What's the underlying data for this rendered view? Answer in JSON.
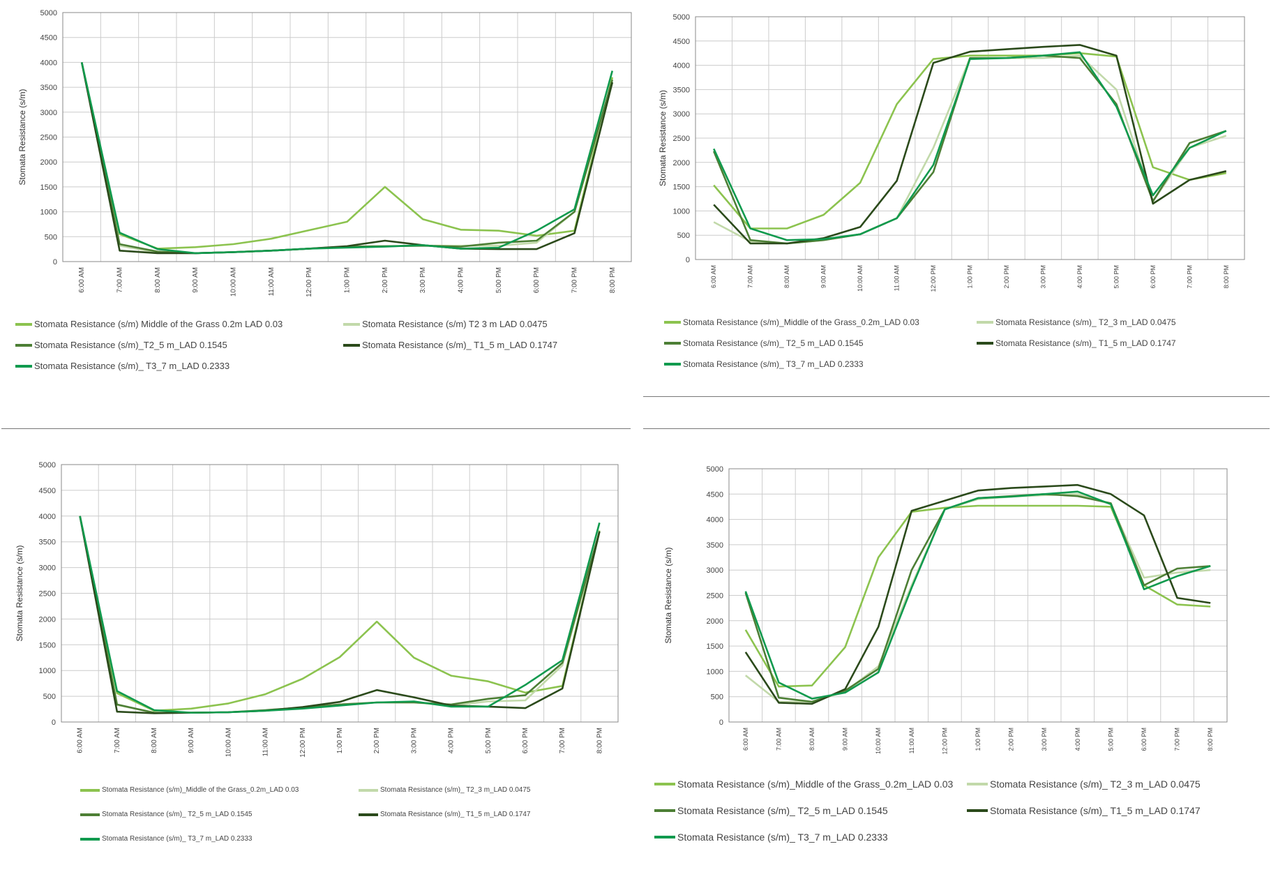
{
  "colors": {
    "grass": "#8cc34f",
    "t2_3": "#c2d9aa",
    "t2_5": "#4d7f35",
    "t1_5": "#2b4a1b",
    "t3_7": "#109a4e",
    "grid": "#cccccc",
    "axis": "#888888"
  },
  "chart_data": [
    {
      "type": "line",
      "ylabel": "Stomata Resistance  (s/m)",
      "ylim": [
        0,
        5000
      ],
      "yticks": [
        "0",
        "500",
        "1000",
        "1500",
        "2000",
        "2500",
        "3000",
        "3500",
        "4000",
        "4500",
        "5000"
      ],
      "categories": [
        "6:00 AM",
        "7:00 AM",
        "8:00 AM",
        "9:00 AM",
        "10:00 AM",
        "11:00 AM",
        "12:00 PM",
        "1:00 PM",
        "2:00 PM",
        "3:00 PM",
        "4:00 PM",
        "5:00 PM",
        "6:00 PM",
        "7:00 PM",
        "8:00 PM"
      ],
      "grid": true,
      "series": [
        {
          "name": "Stomata Resistance  (s/m)  Middle of the Grass  0.2m  LAD 0.03",
          "color": "grass",
          "values": [
            4000,
            550,
            260,
            290,
            350,
            460,
            630,
            800,
            1500,
            850,
            640,
            620,
            520,
            620,
            3700
          ]
        },
        {
          "name": "Stomata Resistance  (s/m)   T2  3 m   LAD 0.0475",
          "color": "t2_3",
          "values": [
            4000,
            320,
            180,
            170,
            190,
            220,
            260,
            300,
            310,
            320,
            320,
            320,
            380,
            1000,
            3600
          ]
        },
        {
          "name": "Stomata Resistance  (s/m)_T2_5 m_LAD 0.1545",
          "color": "t2_5",
          "values": [
            4000,
            350,
            200,
            170,
            190,
            220,
            260,
            300,
            310,
            320,
            300,
            380,
            420,
            1000,
            3650
          ]
        },
        {
          "name": "Stomata Resistance  (s/m)_ T1_5 m_LAD 0.1747",
          "color": "t1_5",
          "values": [
            4000,
            220,
            170,
            170,
            190,
            220,
            260,
            310,
            420,
            330,
            260,
            250,
            250,
            570,
            3600
          ]
        },
        {
          "name": "Stomata Resistance  (s/m)_ T3_7 m_LAD 0.2333",
          "color": "t3_7",
          "values": [
            4000,
            580,
            250,
            170,
            190,
            220,
            260,
            280,
            300,
            330,
            260,
            280,
            620,
            1050,
            3830
          ]
        }
      ]
    },
    {
      "type": "line",
      "ylabel": "Stomata Resistance  (s/m)",
      "ylim": [
        0,
        5000
      ],
      "yticks": [
        "0",
        "500",
        "1000",
        "1500",
        "2000",
        "2500",
        "3000",
        "3500",
        "4000",
        "4500",
        "5000"
      ],
      "categories": [
        "6:00 AM",
        "7:00 AM",
        "8:00 AM",
        "9:00 AM",
        "10:00 AM",
        "11:00 AM",
        "12:00 PM",
        "1:00 PM",
        "2:00 PM",
        "3:00 PM",
        "4:00 PM",
        "5:00 PM",
        "6:00 PM",
        "7:00 PM",
        "8:00 PM"
      ],
      "grid": true,
      "series": [
        {
          "name": "Stomata Resistance  (s/m)_Middle of the Grass_0.2m_LAD 0.03",
          "color": "grass",
          "values": [
            1530,
            640,
            640,
            920,
            1580,
            3200,
            4130,
            4200,
            4200,
            4200,
            4250,
            4180,
            1900,
            1640,
            1780
          ]
        },
        {
          "name": "Stomata Resistance  (s/m)_ T2_3 m_LAD 0.0475",
          "color": "t2_3",
          "values": [
            770,
            370,
            330,
            400,
            520,
            850,
            2300,
            4150,
            4150,
            4150,
            4200,
            3500,
            1200,
            2300,
            2550
          ]
        },
        {
          "name": "Stomata Resistance  (s/m)_ T2_5 m_LAD 0.1545",
          "color": "t2_5",
          "values": [
            2230,
            400,
            330,
            400,
            520,
            850,
            1800,
            4150,
            4150,
            4200,
            4150,
            3200,
            1200,
            2400,
            2650
          ]
        },
        {
          "name": "Stomata Resistance  (s/m)_ T1_5 m_LAD 0.1747",
          "color": "t1_5",
          "values": [
            1130,
            330,
            330,
            440,
            670,
            1620,
            4050,
            4280,
            4330,
            4380,
            4420,
            4200,
            1150,
            1640,
            1820
          ]
        },
        {
          "name": "Stomata Resistance  (s/m)_ T3_7 m_LAD 0.2333",
          "color": "t3_7",
          "values": [
            2280,
            640,
            400,
            420,
            520,
            850,
            1950,
            4130,
            4150,
            4200,
            4270,
            3150,
            1320,
            2300,
            2650
          ]
        }
      ]
    },
    {
      "type": "line",
      "ylabel": "Stomata Resistance  (s/m)",
      "ylim": [
        0,
        5000
      ],
      "yticks": [
        "0",
        "500",
        "1000",
        "1500",
        "2000",
        "2500",
        "3000",
        "3500",
        "4000",
        "4500",
        "5000"
      ],
      "categories": [
        "6:00 AM",
        "7:00 AM",
        "8:00 AM",
        "9:00 AM",
        "10:00 AM",
        "11:00 AM",
        "12:00 PM",
        "1:00 PM",
        "2:00 PM",
        "3:00 PM",
        "4:00 PM",
        "5:00 PM",
        "6:00 PM",
        "7:00 PM",
        "8:00 PM"
      ],
      "grid": true,
      "series": [
        {
          "name": "Stomata Resistance  (s/m)_Middle of the Grass_0.2m_LAD 0.03",
          "color": "grass",
          "values": [
            4000,
            560,
            220,
            260,
            360,
            540,
            840,
            1260,
            1950,
            1250,
            900,
            790,
            570,
            700,
            3720
          ]
        },
        {
          "name": "Stomata Resistance  (s/m)_ T2_3 m_LAD 0.0475",
          "color": "t2_3",
          "values": [
            4000,
            330,
            180,
            180,
            190,
            230,
            280,
            340,
            380,
            380,
            320,
            400,
            420,
            1100,
            3700
          ]
        },
        {
          "name": "Stomata Resistance  (s/m)_ T2_5 m_LAD 0.1545",
          "color": "t2_5",
          "values": [
            4000,
            340,
            180,
            180,
            190,
            230,
            280,
            340,
            380,
            380,
            340,
            450,
            520,
            1150,
            3700
          ]
        },
        {
          "name": "Stomata Resistance  (s/m)_ T1_5 m_LAD 0.1747",
          "color": "t1_5",
          "values": [
            4000,
            200,
            170,
            180,
            190,
            220,
            290,
            390,
            620,
            480,
            320,
            300,
            270,
            650,
            3700
          ]
        },
        {
          "name": "Stomata Resistance  (s/m)_ T3_7 m_LAD 0.2333",
          "color": "t3_7",
          "values": [
            4000,
            600,
            230,
            180,
            190,
            220,
            260,
            320,
            380,
            400,
            300,
            300,
            720,
            1200,
            3870
          ]
        }
      ]
    },
    {
      "type": "line",
      "ylabel": "Stomata Resistance  (s/m)",
      "ylim": [
        0,
        5000
      ],
      "yticks": [
        "0",
        "500",
        "1000",
        "1500",
        "2000",
        "2500",
        "3000",
        "3500",
        "4000",
        "4500",
        "5000"
      ],
      "categories": [
        "6:00 AM",
        "7:00 AM",
        "8:00 AM",
        "9:00 AM",
        "10:00 AM",
        "11:00 AM",
        "12:00 PM",
        "1:00 PM",
        "2:00 PM",
        "3:00 PM",
        "4:00 PM",
        "5:00 PM",
        "6:00 PM",
        "7:00 PM",
        "8:00 PM"
      ],
      "grid": true,
      "series": [
        {
          "name": "Stomata Resistance  (s/m)_Middle of the Grass_0.2m_LAD 0.03",
          "color": "grass",
          "values": [
            1820,
            700,
            720,
            1480,
            3250,
            4150,
            4230,
            4270,
            4270,
            4270,
            4270,
            4250,
            2700,
            2320,
            2280
          ]
        },
        {
          "name": "Stomata Resistance  (s/m)_ T2_3 m_LAD 0.0475",
          "color": "t2_3",
          "values": [
            920,
            400,
            400,
            600,
            1100,
            2700,
            4200,
            4400,
            4450,
            4480,
            4500,
            4300,
            2850,
            2950,
            3000
          ]
        },
        {
          "name": "Stomata Resistance  (s/m)_ T2_5 m_LAD 0.1545",
          "color": "t2_5",
          "values": [
            2550,
            480,
            400,
            620,
            1050,
            3000,
            4200,
            4420,
            4460,
            4500,
            4460,
            4320,
            2700,
            3030,
            3080
          ]
        },
        {
          "name": "Stomata Resistance  (s/m)_ T1_5 m_LAD 0.1747",
          "color": "t1_5",
          "values": [
            1380,
            380,
            360,
            650,
            1880,
            4170,
            4370,
            4570,
            4620,
            4650,
            4680,
            4500,
            4080,
            2450,
            2350
          ]
        },
        {
          "name": "Stomata Resistance  (s/m)_ T3_7 m_LAD 0.2333",
          "color": "t3_7",
          "values": [
            2580,
            780,
            460,
            580,
            980,
            2650,
            4200,
            4420,
            4450,
            4500,
            4550,
            4300,
            2620,
            2880,
            3080
          ]
        }
      ]
    }
  ]
}
